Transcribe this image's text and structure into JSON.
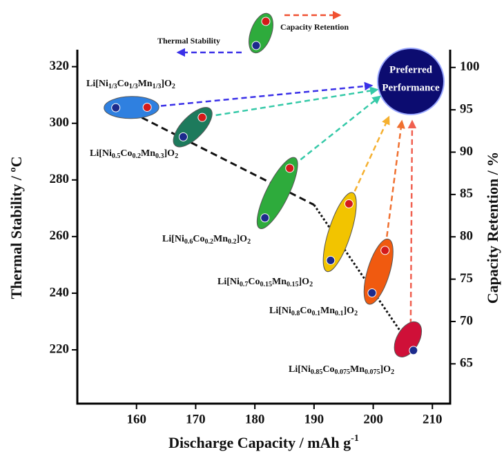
{
  "chart_data": {
    "type": "scatter",
    "xlabel": "Discharge Capacity / mAh g",
    "xlabel_sup": "-1",
    "ylabel": "Thermal Stability / ºC",
    "y2label": "Capacity Retention / %",
    "xlim": [
      150,
      213
    ],
    "xticks": [
      160,
      170,
      180,
      190,
      200,
      210
    ],
    "ylim": [
      201,
      326
    ],
    "yticks": [
      220,
      240,
      260,
      280,
      300,
      320
    ],
    "y2lim": [
      60.3,
      102.1
    ],
    "y2ticks": [
      65,
      70,
      75,
      80,
      85,
      90,
      95,
      100
    ],
    "series": [
      {
        "name": "Thermal Stability",
        "color": "#1c2a8c",
        "x": [
          156.5,
          167.9,
          181.7,
          192.8,
          199.8,
          206.8
        ],
        "values": [
          305.5,
          295.2,
          266.6,
          251.6,
          240.1,
          219.8
        ]
      },
      {
        "name": "Capacity Retention",
        "color": "#d41a1a",
        "axis": "y2",
        "x": [
          161.8,
          171.1,
          185.9,
          195.9,
          202,
          null
        ],
        "values": [
          95.3,
          94.1,
          88.1,
          83.9,
          78.4,
          null
        ]
      }
    ],
    "materials": [
      {
        "label": [
          "Li[Ni",
          "1/3",
          "Co",
          "1/3",
          "Mn",
          "1/3",
          "]O",
          "2"
        ],
        "color": "#2f80e0",
        "arrow_color": "#3a30e8"
      },
      {
        "label": [
          "Li[Ni",
          "0.5",
          "Co",
          "0.2",
          "Mn",
          "0.3",
          "]O",
          "2"
        ],
        "color": "#1d7a5c",
        "arrow_color": "#35c9a8"
      },
      {
        "label": [
          "Li[Ni",
          "0.6",
          "Co",
          "0.2",
          "Mn",
          "0.2",
          "]O",
          "2"
        ],
        "color": "#2eab3c",
        "arrow_color": "#35c9a8"
      },
      {
        "label": [
          "Li[Ni",
          "0.7",
          "Co",
          "0.15",
          "Mn",
          "0.15",
          "]O",
          "2"
        ],
        "color": "#f2c400",
        "arrow_color": "#f5b030"
      },
      {
        "label": [
          "Li[Ni",
          "0.8",
          "Co",
          "0.1",
          "Mn",
          "0.1",
          "]O",
          "2"
        ],
        "color": "#f05a10",
        "arrow_color": "#f07030"
      },
      {
        "label": [
          "Li[Ni",
          "0.85",
          "Co",
          "0.075",
          "Mn",
          "0.075",
          "]O",
          "2"
        ],
        "color": "#cf1038",
        "arrow_color": "#f06050"
      }
    ],
    "trend_lines": [
      {
        "style": "dashed",
        "x": [
          155.9,
          190
        ],
        "values": [
          307.3,
          271.2
        ]
      },
      {
        "style": "dotted",
        "x": [
          190,
          206.8
        ],
        "values": [
          271.2,
          219.8
        ]
      }
    ],
    "target": {
      "label": [
        "Preferred",
        "Performance"
      ],
      "color": "#0c0c70"
    }
  }
}
